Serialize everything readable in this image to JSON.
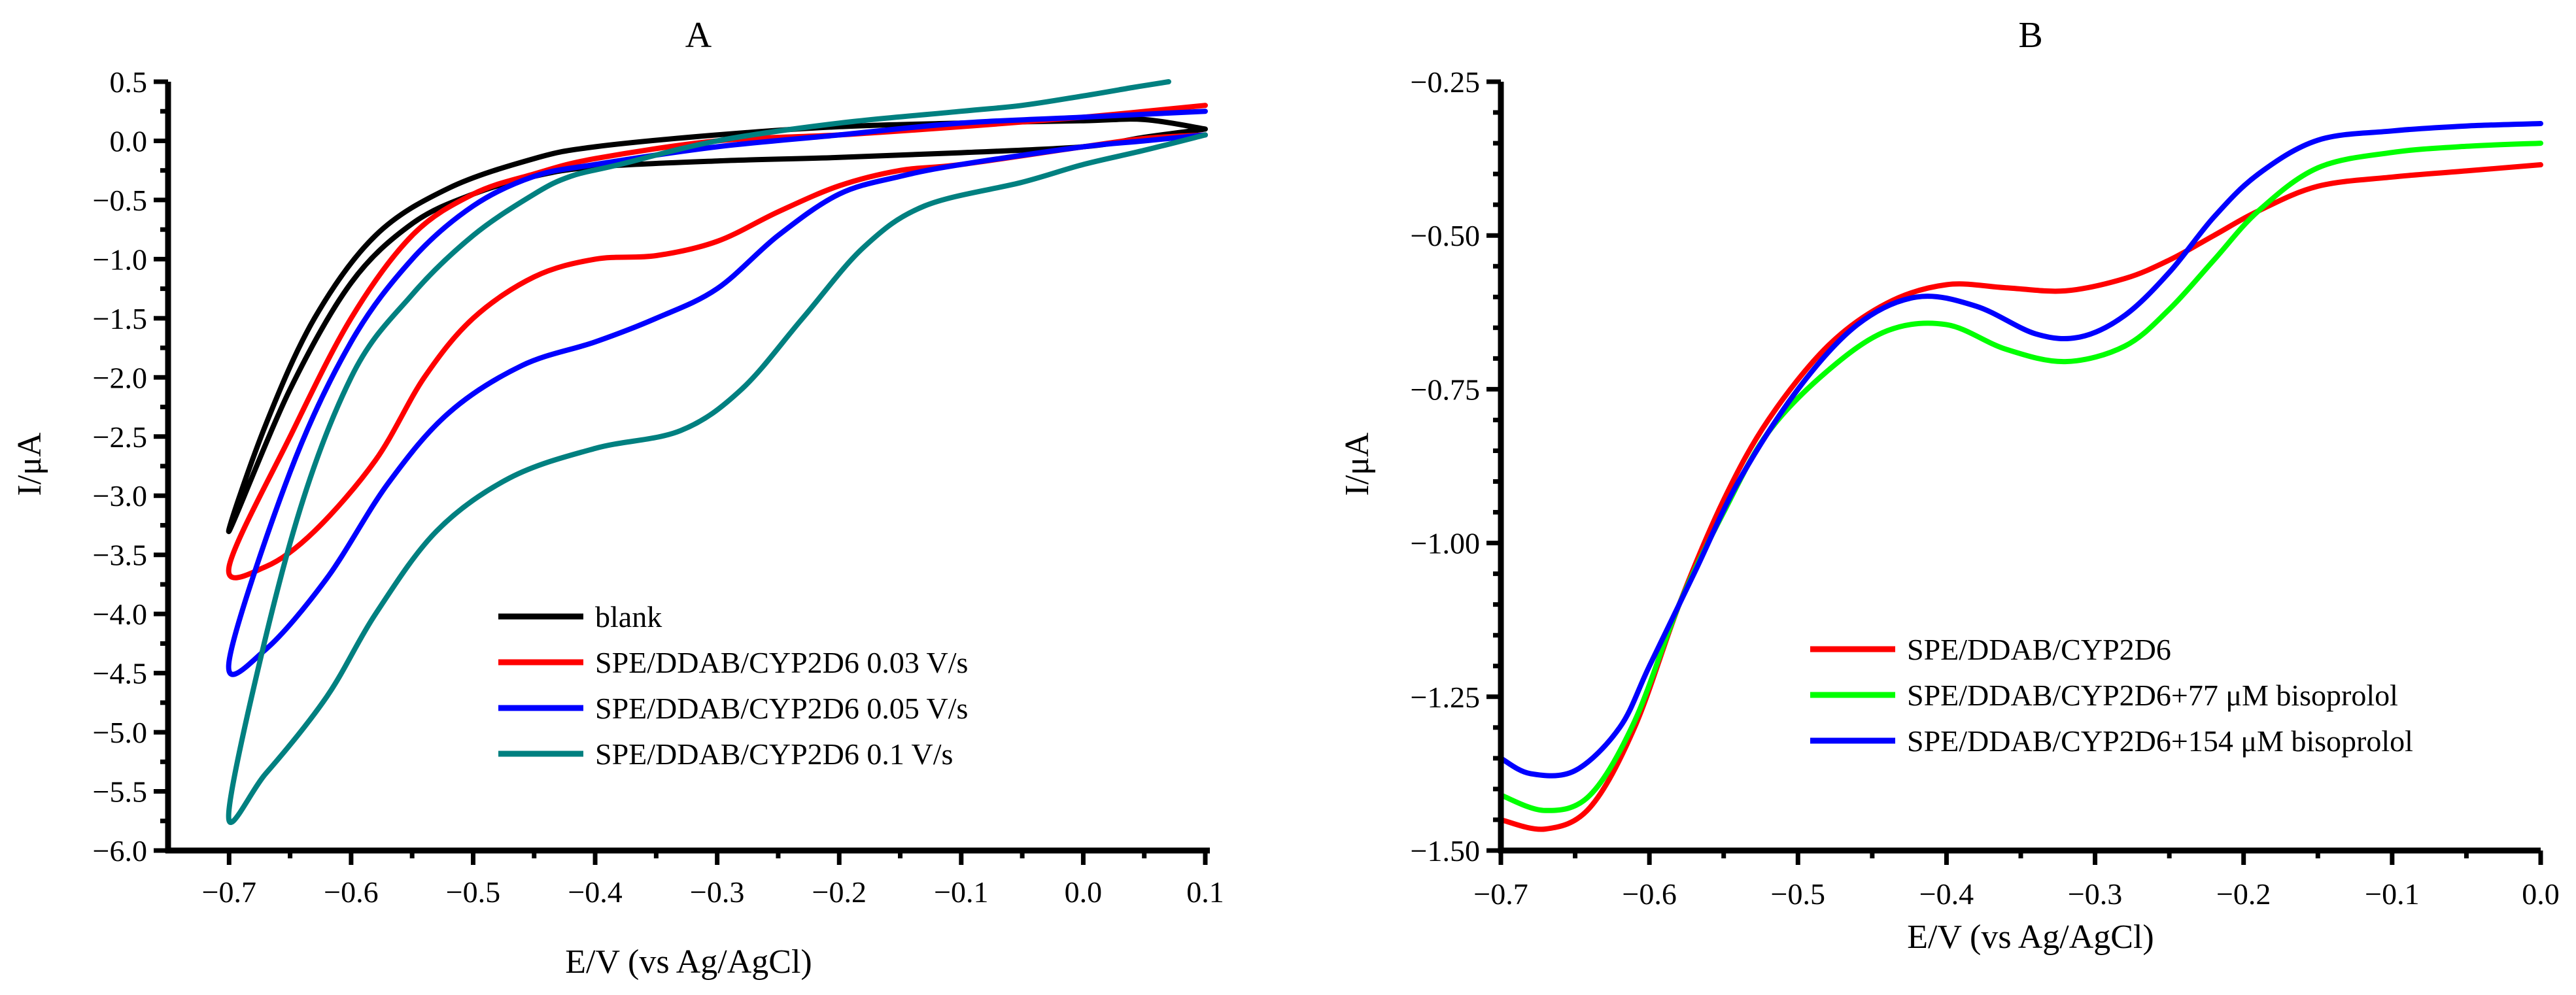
{
  "chart_data": [
    {
      "type": "line",
      "panel": "A",
      "title": "A",
      "xlabel": "E/V (vs Ag/AgCl)",
      "ylabel": "I/μA",
      "xlim": [
        -0.75,
        0.1
      ],
      "ylim": [
        -6.0,
        0.5
      ],
      "xticks": [
        -0.7,
        -0.6,
        -0.5,
        -0.4,
        -0.3,
        -0.2,
        -0.1,
        0.0,
        0.1
      ],
      "xtick_labels": [
        "−0.7",
        "−0.6",
        "−0.5",
        "−0.4",
        "−0.3",
        "−0.2",
        "−0.1",
        "0.0",
        "0.1"
      ],
      "yticks": [
        0.5,
        0.0,
        -0.5,
        -1.0,
        -1.5,
        -2.0,
        -2.5,
        -3.0,
        -3.5,
        -4.0,
        -4.5,
        -5.0,
        -5.5,
        -6.0
      ],
      "ytick_labels": [
        "0.5",
        "0.0",
        "−0.5",
        "−1.0",
        "−1.5",
        "−2.0",
        "−2.5",
        "−3.0",
        "−3.5",
        "−4.0",
        "−4.5",
        "−5.0",
        "−5.5",
        "−6.0"
      ],
      "legend_position": "lower-right",
      "grid": false,
      "series": [
        {
          "name": "blank",
          "color": "#000000",
          "points": [
            [
              0.1,
              0.1
            ],
            [
              0.05,
              0.03
            ],
            [
              0.0,
              -0.05
            ],
            [
              -0.1,
              -0.1
            ],
            [
              -0.2,
              -0.14
            ],
            [
              -0.3,
              -0.17
            ],
            [
              -0.4,
              -0.22
            ],
            [
              -0.45,
              -0.3
            ],
            [
              -0.5,
              -0.45
            ],
            [
              -0.55,
              -0.7
            ],
            [
              -0.6,
              -1.2
            ],
            [
              -0.65,
              -2.1
            ],
            [
              -0.7,
              -3.3
            ],
            [
              -0.67,
              -2.4
            ],
            [
              -0.63,
              -1.5
            ],
            [
              -0.58,
              -0.8
            ],
            [
              -0.52,
              -0.4
            ],
            [
              -0.45,
              -0.15
            ],
            [
              -0.4,
              -0.05
            ],
            [
              -0.3,
              0.05
            ],
            [
              -0.2,
              0.12
            ],
            [
              -0.1,
              0.15
            ],
            [
              0.0,
              0.17
            ],
            [
              0.05,
              0.18
            ],
            [
              0.1,
              0.1
            ]
          ]
        },
        {
          "name": "SPE/DDAB/CYP2D6 0.03 V/s",
          "color": "#ff0000",
          "points": [
            [
              0.1,
              0.3
            ],
            [
              0.0,
              0.2
            ],
            [
              -0.1,
              0.12
            ],
            [
              -0.2,
              0.05
            ],
            [
              -0.3,
              0.0
            ],
            [
              -0.4,
              -0.15
            ],
            [
              -0.45,
              -0.28
            ],
            [
              -0.5,
              -0.45
            ],
            [
              -0.55,
              -0.8
            ],
            [
              -0.6,
              -1.5
            ],
            [
              -0.65,
              -2.5
            ],
            [
              -0.7,
              -3.6
            ],
            [
              -0.67,
              -3.6
            ],
            [
              -0.63,
              -3.3
            ],
            [
              -0.58,
              -2.7
            ],
            [
              -0.54,
              -2.0
            ],
            [
              -0.5,
              -1.5
            ],
            [
              -0.45,
              -1.15
            ],
            [
              -0.4,
              -1.0
            ],
            [
              -0.35,
              -0.97
            ],
            [
              -0.3,
              -0.85
            ],
            [
              -0.25,
              -0.6
            ],
            [
              -0.2,
              -0.38
            ],
            [
              -0.15,
              -0.25
            ],
            [
              -0.1,
              -0.2
            ],
            [
              0.0,
              -0.05
            ],
            [
              0.05,
              0.02
            ],
            [
              0.1,
              0.05
            ]
          ]
        },
        {
          "name": "SPE/DDAB/CYP2D6 0.05 V/s",
          "color": "#0000ff",
          "points": [
            [
              0.1,
              0.25
            ],
            [
              0.0,
              0.2
            ],
            [
              -0.1,
              0.15
            ],
            [
              -0.2,
              0.05
            ],
            [
              -0.3,
              -0.05
            ],
            [
              -0.4,
              -0.2
            ],
            [
              -0.45,
              -0.3
            ],
            [
              -0.5,
              -0.55
            ],
            [
              -0.55,
              -1.0
            ],
            [
              -0.6,
              -1.7
            ],
            [
              -0.65,
              -2.8
            ],
            [
              -0.7,
              -4.4
            ],
            [
              -0.67,
              -4.3
            ],
            [
              -0.62,
              -3.7
            ],
            [
              -0.57,
              -2.9
            ],
            [
              -0.52,
              -2.3
            ],
            [
              -0.46,
              -1.9
            ],
            [
              -0.4,
              -1.7
            ],
            [
              -0.35,
              -1.5
            ],
            [
              -0.3,
              -1.25
            ],
            [
              -0.25,
              -0.8
            ],
            [
              -0.2,
              -0.45
            ],
            [
              -0.15,
              -0.3
            ],
            [
              -0.1,
              -0.2
            ],
            [
              0.0,
              -0.05
            ],
            [
              0.05,
              0.0
            ],
            [
              0.1,
              0.05
            ]
          ]
        },
        {
          "name": "SPE/DDAB/CYP2D6 0.1 V/s",
          "color": "#008080",
          "points": [
            [
              0.07,
              0.5
            ],
            [
              0.04,
              0.45
            ],
            [
              0.0,
              0.38
            ],
            [
              -0.05,
              0.3
            ],
            [
              -0.1,
              0.25
            ],
            [
              -0.2,
              0.15
            ],
            [
              -0.3,
              0.0
            ],
            [
              -0.38,
              -0.2
            ],
            [
              -0.42,
              -0.3
            ],
            [
              -0.45,
              -0.45
            ],
            [
              -0.5,
              -0.8
            ],
            [
              -0.55,
              -1.3
            ],
            [
              -0.6,
              -2.0
            ],
            [
              -0.65,
              -3.4
            ],
            [
              -0.7,
              -5.65
            ],
            [
              -0.67,
              -5.35
            ],
            [
              -0.62,
              -4.7
            ],
            [
              -0.58,
              -4.0
            ],
            [
              -0.53,
              -3.3
            ],
            [
              -0.47,
              -2.85
            ],
            [
              -0.4,
              -2.6
            ],
            [
              -0.33,
              -2.45
            ],
            [
              -0.28,
              -2.1
            ],
            [
              -0.23,
              -1.5
            ],
            [
              -0.18,
              -0.9
            ],
            [
              -0.13,
              -0.55
            ],
            [
              -0.05,
              -0.35
            ],
            [
              0.0,
              -0.2
            ],
            [
              0.05,
              -0.08
            ],
            [
              0.1,
              0.05
            ]
          ]
        }
      ]
    },
    {
      "type": "line",
      "panel": "B",
      "title": "B",
      "xlabel": "E/V (vs Ag/AgCl)",
      "ylabel": "I/μA",
      "xlim": [
        -0.7,
        0.0
      ],
      "ylim": [
        -1.5,
        -0.25
      ],
      "xticks": [
        -0.7,
        -0.6,
        -0.5,
        -0.4,
        -0.3,
        -0.2,
        -0.1,
        0.0
      ],
      "xtick_labels": [
        "−0.7",
        "−0.6",
        "−0.5",
        "−0.4",
        "−0.3",
        "−0.2",
        "−0.1",
        "0.0"
      ],
      "yticks": [
        -0.25,
        -0.5,
        -0.75,
        -1.0,
        -1.25,
        -1.5
      ],
      "ytick_labels": [
        "−0.25",
        "−0.50",
        "−0.75",
        "−1.00",
        "−1.25",
        "−1.50"
      ],
      "legend_position": "center-right",
      "grid": false,
      "series": [
        {
          "name": "SPE/DDAB/CYP2D6",
          "color": "#ff0000",
          "points": [
            [
              -0.7,
              -1.45
            ],
            [
              -0.67,
              -1.465
            ],
            [
              -0.64,
              -1.43
            ],
            [
              -0.61,
              -1.3
            ],
            [
              -0.58,
              -1.1
            ],
            [
              -0.55,
              -0.93
            ],
            [
              -0.52,
              -0.8
            ],
            [
              -0.48,
              -0.68
            ],
            [
              -0.44,
              -0.61
            ],
            [
              -0.4,
              -0.58
            ],
            [
              -0.36,
              -0.585
            ],
            [
              -0.32,
              -0.59
            ],
            [
              -0.28,
              -0.57
            ],
            [
              -0.25,
              -0.54
            ],
            [
              -0.22,
              -0.5
            ],
            [
              -0.19,
              -0.46
            ],
            [
              -0.15,
              -0.42
            ],
            [
              -0.1,
              -0.405
            ],
            [
              -0.05,
              -0.395
            ],
            [
              0.0,
              -0.385
            ]
          ]
        },
        {
          "name": "SPE/DDAB/CYP2D6+77 μM bisoprolol",
          "color": "#00ff00",
          "points": [
            [
              -0.7,
              -1.41
            ],
            [
              -0.67,
              -1.435
            ],
            [
              -0.64,
              -1.41
            ],
            [
              -0.61,
              -1.29
            ],
            [
              -0.58,
              -1.1
            ],
            [
              -0.55,
              -0.95
            ],
            [
              -0.52,
              -0.82
            ],
            [
              -0.48,
              -0.72
            ],
            [
              -0.44,
              -0.655
            ],
            [
              -0.4,
              -0.645
            ],
            [
              -0.36,
              -0.685
            ],
            [
              -0.32,
              -0.705
            ],
            [
              -0.28,
              -0.68
            ],
            [
              -0.25,
              -0.62
            ],
            [
              -0.22,
              -0.54
            ],
            [
              -0.19,
              -0.46
            ],
            [
              -0.15,
              -0.39
            ],
            [
              -0.1,
              -0.365
            ],
            [
              -0.05,
              -0.355
            ],
            [
              0.0,
              -0.35
            ]
          ]
        },
        {
          "name": "SPE/DDAB/CYP2D6+154 μM bisoprolol",
          "color": "#0000ff",
          "points": [
            [
              -0.7,
              -1.35
            ],
            [
              -0.68,
              -1.375
            ],
            [
              -0.65,
              -1.37
            ],
            [
              -0.62,
              -1.3
            ],
            [
              -0.6,
              -1.2
            ],
            [
              -0.57,
              -1.05
            ],
            [
              -0.54,
              -0.9
            ],
            [
              -0.5,
              -0.75
            ],
            [
              -0.46,
              -0.645
            ],
            [
              -0.42,
              -0.6
            ],
            [
              -0.38,
              -0.615
            ],
            [
              -0.34,
              -0.66
            ],
            [
              -0.31,
              -0.665
            ],
            [
              -0.28,
              -0.63
            ],
            [
              -0.25,
              -0.56
            ],
            [
              -0.22,
              -0.47
            ],
            [
              -0.19,
              -0.4
            ],
            [
              -0.15,
              -0.345
            ],
            [
              -0.1,
              -0.33
            ],
            [
              -0.05,
              -0.322
            ],
            [
              0.0,
              -0.318
            ]
          ]
        }
      ]
    }
  ]
}
